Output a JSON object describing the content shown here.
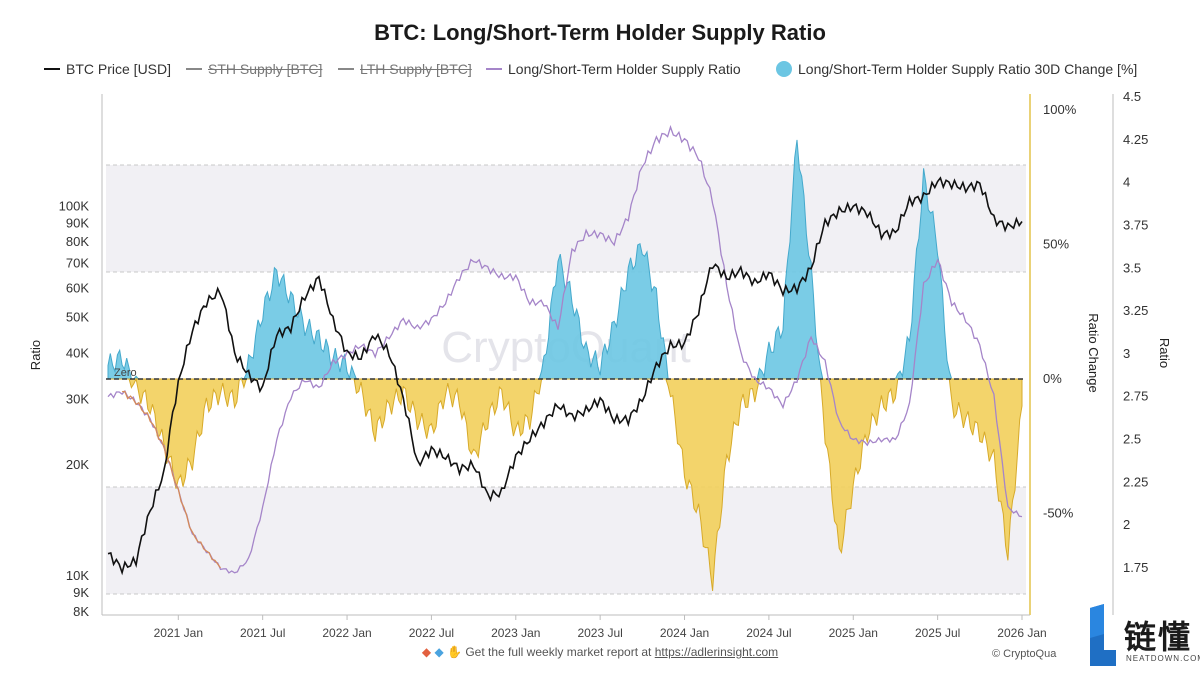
{
  "title": "BTC: Long/Short-Term Holder Supply Ratio",
  "legend": [
    {
      "label": "BTC Price [USD]",
      "color": "#111111",
      "kind": "line",
      "struck": false
    },
    {
      "label": "STH Supply [BTC]",
      "color": "#888888",
      "kind": "line",
      "struck": true
    },
    {
      "label": "LTH Supply [BTC]",
      "color": "#888888",
      "kind": "line",
      "struck": true
    },
    {
      "label": "Long/Short-Term Holder Supply Ratio",
      "color": "#a585c9",
      "kind": "line",
      "struck": false
    },
    {
      "label": "Long/Short-Term Holder Supply Ratio 30D Change [%]",
      "color": "#6cc6e3",
      "kind": "dot",
      "struck": false
    }
  ],
  "footer": {
    "icons": "◆ ◆ ✋",
    "text": "Get the full weekly market report at",
    "link": "https://adlerinsight.com",
    "copyright": "© CryptoQua"
  },
  "logo": {
    "cn": "链懂",
    "en": "NEATDOWN.COM"
  },
  "watermark": "CryptoQuant",
  "chart_data": {
    "type": "line",
    "x_ticks": [
      "2021 Jan",
      "2021 Jul",
      "2022 Jan",
      "2022 Jul",
      "2023 Jan",
      "2023 Jul",
      "2024 Jan",
      "2024 Jul",
      "2025 Jan",
      "2025 Jul",
      "2026 Jan"
    ],
    "x_range": [
      "2020-08",
      "2026-01"
    ],
    "left_axis": {
      "label": "Ratio",
      "scale": "log",
      "ticks": [
        "8K",
        "9K",
        "10K",
        "20K",
        "30K",
        "40K",
        "50K",
        "60K",
        "70K",
        "80K",
        "90K",
        "100K"
      ],
      "ylim": [
        8000,
        200000
      ]
    },
    "mid_axis": {
      "label": "Ratio Change",
      "ticks": [
        "100%",
        "50%",
        "0%",
        "-50%"
      ],
      "ylim": [
        -80,
        100
      ]
    },
    "right_axis": {
      "label": "Ratio",
      "ticks": [
        "1.75",
        "2",
        "2.25",
        "2.5",
        "2.75",
        "3",
        "3.25",
        "3.5",
        "3.75",
        "4",
        "4.25",
        "4.5"
      ],
      "ylim": [
        1.6,
        4.5
      ]
    },
    "zero_label": "Zero",
    "grid_bands": "horizontal shaded bands",
    "legend_position": "top",
    "series": [
      {
        "name": "BTC Price [USD]",
        "axis": "left",
        "color": "#111111",
        "points": [
          [
            "2020-08",
            11500
          ],
          [
            "2020-09",
            10500
          ],
          [
            "2020-10",
            11000
          ],
          [
            "2020-11",
            15000
          ],
          [
            "2020-12",
            19000
          ],
          [
            "2021-01",
            33000
          ],
          [
            "2021-02",
            46000
          ],
          [
            "2021-03",
            55000
          ],
          [
            "2021-04",
            59000
          ],
          [
            "2021-05",
            40000
          ],
          [
            "2021-06",
            35000
          ],
          [
            "2021-07",
            32000
          ],
          [
            "2021-08",
            45000
          ],
          [
            "2021-09",
            47000
          ],
          [
            "2021-10",
            57000
          ],
          [
            "2021-11",
            64000
          ],
          [
            "2021-12",
            49000
          ],
          [
            "2022-01",
            40000
          ],
          [
            "2022-02",
            39000
          ],
          [
            "2022-03",
            45000
          ],
          [
            "2022-04",
            40000
          ],
          [
            "2022-05",
            30000
          ],
          [
            "2022-06",
            20000
          ],
          [
            "2022-07",
            22000
          ],
          [
            "2022-08",
            21000
          ],
          [
            "2022-09",
            19500
          ],
          [
            "2022-10",
            20000
          ],
          [
            "2022-11",
            16500
          ],
          [
            "2022-12",
            16800
          ],
          [
            "2023-01",
            21000
          ],
          [
            "2023-02",
            23500
          ],
          [
            "2023-03",
            26000
          ],
          [
            "2023-04",
            29000
          ],
          [
            "2023-05",
            27000
          ],
          [
            "2023-06",
            28000
          ],
          [
            "2023-07",
            30000
          ],
          [
            "2023-08",
            26500
          ],
          [
            "2023-09",
            26500
          ],
          [
            "2023-10",
            30000
          ],
          [
            "2023-11",
            37000
          ],
          [
            "2023-12",
            42000
          ],
          [
            "2024-01",
            42500
          ],
          [
            "2024-02",
            52000
          ],
          [
            "2024-03",
            70000
          ],
          [
            "2024-04",
            64000
          ],
          [
            "2024-05",
            67000
          ],
          [
            "2024-06",
            62000
          ],
          [
            "2024-07",
            66000
          ],
          [
            "2024-08",
            59000
          ],
          [
            "2024-09",
            60000
          ],
          [
            "2024-10",
            68000
          ],
          [
            "2024-11",
            90000
          ],
          [
            "2024-12",
            97000
          ],
          [
            "2025-01",
            100000
          ],
          [
            "2025-02",
            96000
          ],
          [
            "2025-03",
            84000
          ],
          [
            "2025-04",
            85000
          ],
          [
            "2025-05",
            103000
          ],
          [
            "2025-06",
            106000
          ],
          [
            "2025-07",
            117000
          ],
          [
            "2025-08",
            115000
          ],
          [
            "2025-09",
            112000
          ],
          [
            "2025-10",
            115000
          ],
          [
            "2025-11",
            92000
          ],
          [
            "2025-12",
            88000
          ],
          [
            "2026-01",
            91000
          ]
        ]
      },
      {
        "name": "Long/Short-Term Holder Supply Ratio",
        "axis": "right",
        "color": "#a585c9",
        "color_low": "#d48a5a",
        "points": [
          [
            "2020-08",
            2.75
          ],
          [
            "2020-09",
            2.78
          ],
          [
            "2020-10",
            2.72
          ],
          [
            "2020-11",
            2.62
          ],
          [
            "2020-12",
            2.45
          ],
          [
            "2021-01",
            2.2
          ],
          [
            "2021-02",
            1.95
          ],
          [
            "2021-03",
            1.85
          ],
          [
            "2021-04",
            1.75
          ],
          [
            "2021-05",
            1.72
          ],
          [
            "2021-06",
            1.8
          ],
          [
            "2021-07",
            2.1
          ],
          [
            "2021-08",
            2.5
          ],
          [
            "2021-09",
            2.75
          ],
          [
            "2021-10",
            2.85
          ],
          [
            "2021-11",
            2.8
          ],
          [
            "2021-12",
            2.95
          ],
          [
            "2022-01",
            3.0
          ],
          [
            "2022-02",
            3.05
          ],
          [
            "2022-03",
            3.0
          ],
          [
            "2022-04",
            3.1
          ],
          [
            "2022-05",
            3.2
          ],
          [
            "2022-06",
            3.15
          ],
          [
            "2022-07",
            3.2
          ],
          [
            "2022-08",
            3.3
          ],
          [
            "2022-09",
            3.45
          ],
          [
            "2022-10",
            3.55
          ],
          [
            "2022-11",
            3.5
          ],
          [
            "2022-12",
            3.45
          ],
          [
            "2023-01",
            3.45
          ],
          [
            "2023-02",
            3.3
          ],
          [
            "2023-03",
            3.3
          ],
          [
            "2023-04",
            3.15
          ],
          [
            "2023-05",
            3.6
          ],
          [
            "2023-06",
            3.7
          ],
          [
            "2023-07",
            3.7
          ],
          [
            "2023-08",
            3.65
          ],
          [
            "2023-09",
            3.8
          ],
          [
            "2023-10",
            4.1
          ],
          [
            "2023-11",
            4.25
          ],
          [
            "2023-12",
            4.3
          ],
          [
            "2024-01",
            4.25
          ],
          [
            "2024-02",
            4.15
          ],
          [
            "2024-03",
            3.9
          ],
          [
            "2024-04",
            3.4
          ],
          [
            "2024-05",
            3.0
          ],
          [
            "2024-06",
            2.85
          ],
          [
            "2024-07",
            2.8
          ],
          [
            "2024-08",
            2.7
          ],
          [
            "2024-09",
            2.85
          ],
          [
            "2024-10",
            3.1
          ],
          [
            "2024-11",
            2.95
          ],
          [
            "2024-12",
            2.6
          ],
          [
            "2025-01",
            2.5
          ],
          [
            "2025-02",
            2.48
          ],
          [
            "2025-03",
            2.5
          ],
          [
            "2025-04",
            2.5
          ],
          [
            "2025-05",
            2.7
          ],
          [
            "2025-06",
            3.4
          ],
          [
            "2025-07",
            3.55
          ],
          [
            "2025-08",
            3.3
          ],
          [
            "2025-09",
            3.2
          ],
          [
            "2025-10",
            3.05
          ],
          [
            "2025-11",
            2.75
          ],
          [
            "2025-12",
            2.1
          ],
          [
            "2026-01",
            2.05
          ]
        ]
      },
      {
        "name": "Long/Short-Term Holder Supply Ratio 30D Change [%]",
        "axis": "mid",
        "type": "area",
        "color_positive": "#6cc6e3",
        "color_negative": "#f2cf5b",
        "points": [
          [
            "2020-08",
            5
          ],
          [
            "2020-09",
            8
          ],
          [
            "2020-10",
            -3
          ],
          [
            "2020-11",
            -10
          ],
          [
            "2020-12",
            -25
          ],
          [
            "2021-01",
            -40
          ],
          [
            "2021-02",
            -30
          ],
          [
            "2021-03",
            -10
          ],
          [
            "2021-04",
            -5
          ],
          [
            "2021-05",
            -8
          ],
          [
            "2021-06",
            5
          ],
          [
            "2021-07",
            25
          ],
          [
            "2021-08",
            40
          ],
          [
            "2021-09",
            30
          ],
          [
            "2021-10",
            20
          ],
          [
            "2021-11",
            15
          ],
          [
            "2021-12",
            8
          ],
          [
            "2022-01",
            5
          ],
          [
            "2022-02",
            -5
          ],
          [
            "2022-03",
            -20
          ],
          [
            "2022-04",
            -10
          ],
          [
            "2022-05",
            -5
          ],
          [
            "2022-06",
            -15
          ],
          [
            "2022-07",
            -20
          ],
          [
            "2022-08",
            -5
          ],
          [
            "2022-09",
            -8
          ],
          [
            "2022-10",
            -30
          ],
          [
            "2022-11",
            -15
          ],
          [
            "2022-12",
            -5
          ],
          [
            "2023-01",
            -20
          ],
          [
            "2023-02",
            -15
          ],
          [
            "2023-03",
            5
          ],
          [
            "2023-04",
            45
          ],
          [
            "2023-05",
            30
          ],
          [
            "2023-06",
            10
          ],
          [
            "2023-07",
            5
          ],
          [
            "2023-08",
            20
          ],
          [
            "2023-09",
            40
          ],
          [
            "2023-10",
            50
          ],
          [
            "2023-11",
            30
          ],
          [
            "2023-12",
            -5
          ],
          [
            "2024-01",
            -35
          ],
          [
            "2024-02",
            -50
          ],
          [
            "2024-03",
            -75
          ],
          [
            "2024-04",
            -30
          ],
          [
            "2024-05",
            -10
          ],
          [
            "2024-06",
            -5
          ],
          [
            "2024-07",
            10
          ],
          [
            "2024-08",
            20
          ],
          [
            "2024-09",
            90
          ],
          [
            "2024-10",
            40
          ],
          [
            "2024-11",
            -20
          ],
          [
            "2024-12",
            -65
          ],
          [
            "2025-01",
            -40
          ],
          [
            "2025-02",
            -20
          ],
          [
            "2025-03",
            -10
          ],
          [
            "2025-04",
            -5
          ],
          [
            "2025-05",
            15
          ],
          [
            "2025-06",
            75
          ],
          [
            "2025-07",
            50
          ],
          [
            "2025-08",
            -10
          ],
          [
            "2025-09",
            -15
          ],
          [
            "2025-10",
            -20
          ],
          [
            "2025-11",
            -30
          ],
          [
            "2025-12",
            -65
          ],
          [
            "2026-01",
            -10
          ]
        ]
      }
    ]
  }
}
